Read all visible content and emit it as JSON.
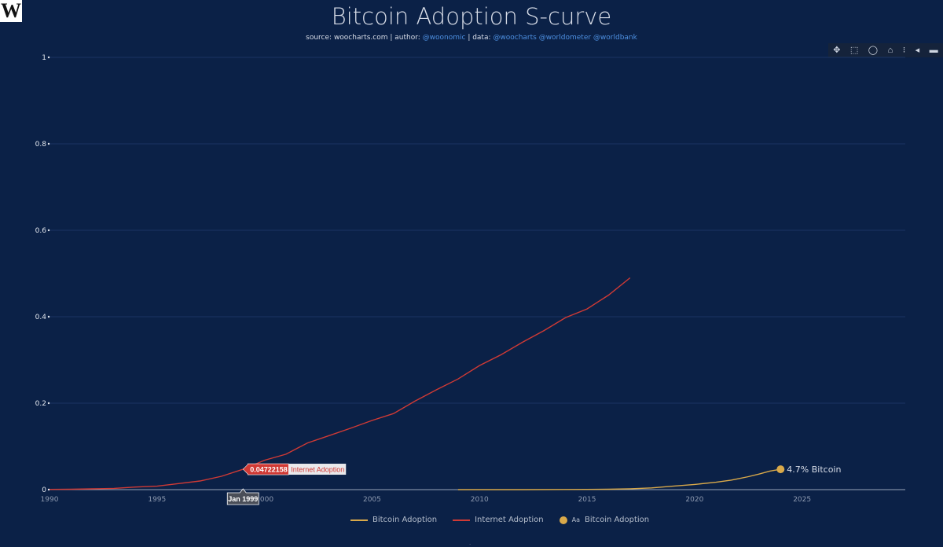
{
  "logo_text": "W",
  "header": {
    "title": "Bitcoin Adoption S-curve",
    "subtitle_prefix": "source: ",
    "source": "woocharts.com",
    "author_label": " | author: ",
    "author": "@woonomic",
    "data_label": " | data: ",
    "data_sources": "@woocharts @worldometer @worldbank"
  },
  "modebar": {
    "pan_icon": "✥",
    "select_icon": "⬚",
    "lasso_icon": "◯",
    "home_icon": "⌂",
    "spike_icon": "⁝",
    "hover_icon": "◂",
    "compare_icon": "▬"
  },
  "colors": {
    "background": "#0b2147",
    "grid": "#1b3463",
    "bitcoin": "#d9a94a",
    "internet": "#d03a35"
  },
  "chart_data": {
    "type": "line",
    "title": "Bitcoin Adoption S-curve",
    "xlim": [
      1990,
      2029.8
    ],
    "ylim": [
      0,
      1
    ],
    "xticks": [
      1990,
      1995,
      2000,
      2005,
      2010,
      2015,
      2020,
      2025
    ],
    "xtick_labels": [
      "1990",
      "1995",
      "2000",
      "2005",
      "2010",
      "2015",
      "2020",
      "2025"
    ],
    "yticks": [
      0,
      0.2,
      0.4,
      0.6,
      0.8,
      1
    ],
    "ytick_labels": [
      "0",
      "0.2",
      "0.4",
      "0.6",
      "0.8",
      "1"
    ],
    "series": [
      {
        "name": "Internet Adoption",
        "color": "#d03a35",
        "x": [
          1990,
          1991,
          1992,
          1993,
          1994,
          1995,
          1996,
          1997,
          1998,
          1999,
          2000,
          2001,
          2002,
          2003,
          2004,
          2005,
          2006,
          2007,
          2008,
          2009,
          2010,
          2011,
          2012,
          2013,
          2014,
          2015,
          2016,
          2017
        ],
        "y": [
          0.0005,
          0.001,
          0.0018,
          0.003,
          0.006,
          0.008,
          0.014,
          0.02,
          0.031,
          0.047,
          0.068,
          0.082,
          0.108,
          0.125,
          0.142,
          0.16,
          0.176,
          0.205,
          0.231,
          0.256,
          0.287,
          0.312,
          0.341,
          0.368,
          0.398,
          0.418,
          0.45,
          0.49
        ]
      },
      {
        "name": "Bitcoin Adoption",
        "color": "#d9a94a",
        "x": [
          2009,
          2012,
          2015,
          2016,
          2017,
          2018,
          2019,
          2020,
          2021,
          2021.7,
          2022,
          2022.5,
          2023,
          2023.5,
          2024
        ],
        "y": [
          0,
          0,
          0.0005,
          0.001,
          0.002,
          0.004,
          0.008,
          0.012,
          0.017,
          0.022,
          0.025,
          0.03,
          0.036,
          0.043,
          0.047
        ]
      }
    ],
    "end_marker": {
      "series": "Bitcoin Adoption",
      "x": 2024,
      "y": 0.047,
      "label": "4.7% Bitcoin"
    },
    "hover": {
      "x": 1999,
      "y": 0.04722158,
      "value_label": "0.04722158",
      "series_label": "Internet Adoption",
      "date_label": "Jan 1999"
    },
    "legend": {
      "position": "bottom-center",
      "entries": [
        "Bitcoin Adoption",
        "Internet Adoption",
        "Bitcoin Adoption"
      ],
      "marker_text": "Aa"
    }
  }
}
